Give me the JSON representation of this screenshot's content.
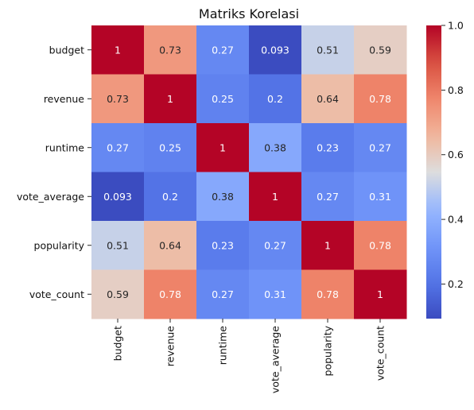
{
  "chart_data": {
    "type": "heatmap",
    "title": "Matriks Korelasi",
    "xlabel": "",
    "ylabel": "",
    "categories": [
      "budget",
      "revenue",
      "runtime",
      "vote_average",
      "popularity",
      "vote_count"
    ],
    "values": [
      [
        1,
        0.73,
        0.27,
        0.093,
        0.51,
        0.59
      ],
      [
        0.73,
        1,
        0.25,
        0.2,
        0.64,
        0.78
      ],
      [
        0.27,
        0.25,
        1,
        0.38,
        0.23,
        0.27
      ],
      [
        0.093,
        0.2,
        0.38,
        1,
        0.27,
        0.31
      ],
      [
        0.51,
        0.64,
        0.23,
        0.27,
        1,
        0.78
      ],
      [
        0.59,
        0.78,
        0.27,
        0.31,
        0.78,
        1
      ]
    ],
    "value_labels": [
      [
        "1",
        "0.73",
        "0.27",
        "0.093",
        "0.51",
        "0.59"
      ],
      [
        "0.73",
        "1",
        "0.25",
        "0.2",
        "0.64",
        "0.78"
      ],
      [
        "0.27",
        "0.25",
        "1",
        "0.38",
        "0.23",
        "0.27"
      ],
      [
        "0.093",
        "0.2",
        "0.38",
        "1",
        "0.27",
        "0.31"
      ],
      [
        "0.51",
        "0.64",
        "0.23",
        "0.27",
        "1",
        "0.78"
      ],
      [
        "0.59",
        "0.78",
        "0.27",
        "0.31",
        "0.78",
        "1"
      ]
    ],
    "colormap": "coolwarm",
    "colorbar": {
      "range": [
        0.093,
        1.0
      ],
      "ticks": [
        0.2,
        0.4,
        0.6,
        0.8,
        1.0
      ],
      "tick_labels": [
        "0.2",
        "0.4",
        "0.6",
        "0.8",
        "1.0"
      ]
    },
    "colors": {
      "low": "#3b4cc0",
      "mid": "#dddddd",
      "high": "#b40426"
    },
    "grid": false,
    "legend": "colorbar-right"
  }
}
